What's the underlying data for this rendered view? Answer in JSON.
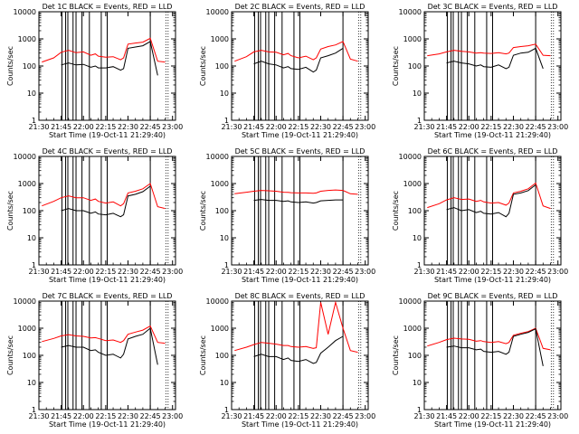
{
  "chart_data": {
    "type": "line",
    "layout": "3x3 grid of log-scale line charts",
    "x_ticks": [
      "21:30",
      "21:45",
      "22:00",
      "22:15",
      "22:30",
      "22:45",
      "23:00"
    ],
    "xlabel": "Start Time (19-Oct-11 21:29:40)",
    "ylabel": "Counts/sec",
    "y_scale": "log",
    "ylim": [
      1,
      10000
    ],
    "y_ticks": [
      "1",
      "10",
      "100",
      "1000",
      "10000"
    ],
    "xlim_minutes": [
      0,
      92
    ],
    "series_names": [
      "Events",
      "LLD"
    ],
    "series_colors": {
      "Events": "#000000",
      "LLD": "#ff0000"
    },
    "vertical_markers_minutes": [
      15.5,
      18,
      19.5,
      23,
      25,
      29,
      34,
      42,
      46,
      75
    ],
    "dotted_markers_minutes": [
      85.5,
      87
    ],
    "panels": [
      {
        "title": "Det 1C BLACK = Events, RED = LLD",
        "x_minutes": [
          2,
          10,
          15,
          20,
          25,
          30,
          35,
          38,
          40,
          45,
          50,
          55,
          57,
          60,
          65,
          70,
          75,
          80,
          85
        ],
        "series": [
          {
            "name": "Events",
            "values": [
              null,
              null,
              110,
              130,
              110,
              115,
              90,
              100,
              85,
              85,
              95,
              70,
              80,
              450,
              500,
              560,
              800,
              45,
              null
            ]
          },
          {
            "name": "LLD",
            "values": [
              140,
              200,
              320,
              380,
              310,
              330,
              250,
              280,
              230,
              210,
              220,
              170,
              200,
              640,
              700,
              760,
              1050,
              150,
              140
            ]
          }
        ]
      },
      {
        "title": "Det 2C BLACK = Events, RED = LLD",
        "x_minutes": [
          2,
          10,
          15,
          20,
          25,
          30,
          35,
          38,
          40,
          45,
          50,
          55,
          57,
          60,
          65,
          70,
          75,
          80,
          85
        ],
        "series": [
          {
            "name": "Events",
            "values": [
              null,
              null,
              120,
              150,
              120,
              110,
              85,
              95,
              80,
              75,
              90,
              60,
              70,
              200,
              240,
              300,
              450,
              null,
              null
            ]
          },
          {
            "name": "LLD",
            "values": [
              150,
              220,
              330,
              380,
              330,
              320,
              260,
              290,
              240,
              200,
              230,
              170,
              200,
              420,
              520,
              600,
              800,
              180,
              150
            ]
          }
        ]
      },
      {
        "title": "Det 3C BLACK = Events, RED = LLD",
        "x_minutes": [
          2,
          10,
          15,
          20,
          25,
          30,
          35,
          38,
          40,
          45,
          50,
          55,
          57,
          60,
          65,
          70,
          75,
          80,
          85
        ],
        "series": [
          {
            "name": "Events",
            "values": [
              null,
              null,
              130,
              150,
              130,
              120,
              100,
              110,
              95,
              90,
              110,
              80,
              90,
              250,
              300,
              320,
              450,
              80,
              null
            ]
          },
          {
            "name": "LLD",
            "values": [
              240,
              280,
              330,
              380,
              350,
              330,
              300,
              310,
              300,
              290,
              310,
              280,
              300,
              480,
              520,
              560,
              640,
              250,
              240
            ]
          }
        ]
      },
      {
        "title": "Det 4C BLACK = Events, RED = LLD",
        "x_minutes": [
          2,
          10,
          15,
          20,
          25,
          30,
          35,
          38,
          40,
          45,
          50,
          55,
          57,
          60,
          65,
          70,
          75,
          80,
          85
        ],
        "series": [
          {
            "name": "Events",
            "values": [
              null,
              null,
              100,
              120,
              100,
              100,
              80,
              90,
              75,
              70,
              80,
              60,
              70,
              350,
              400,
              500,
              800,
              null,
              null
            ]
          },
          {
            "name": "LLD",
            "values": [
              150,
              220,
              300,
              350,
              300,
              300,
              240,
              270,
              220,
              190,
              210,
              150,
              180,
              450,
              520,
              640,
              1000,
              140,
              120
            ]
          }
        ]
      },
      {
        "title": "Det 5C BLACK = Events, RED = LLD",
        "x_minutes": [
          2,
          10,
          15,
          20,
          25,
          30,
          35,
          38,
          40,
          45,
          50,
          55,
          57,
          60,
          65,
          70,
          75,
          80,
          85
        ],
        "series": [
          {
            "name": "Events",
            "values": [
              null,
              null,
              240,
              260,
              240,
              240,
              220,
              230,
              210,
              200,
              210,
              190,
              200,
              230,
              240,
              250,
              250,
              null,
              null
            ]
          },
          {
            "name": "LLD",
            "values": [
              420,
              480,
              520,
              560,
              540,
              520,
              480,
              470,
              460,
              450,
              450,
              440,
              450,
              520,
              560,
              580,
              560,
              420,
              400
            ]
          }
        ]
      },
      {
        "title": "Det 6C BLACK = Events, RED = LLD",
        "x_minutes": [
          2,
          10,
          15,
          20,
          25,
          30,
          35,
          38,
          40,
          45,
          50,
          55,
          57,
          60,
          65,
          70,
          75,
          80,
          85
        ],
        "series": [
          {
            "name": "Events",
            "values": [
              null,
              null,
              110,
              130,
              100,
              110,
              85,
              95,
              80,
              75,
              85,
              60,
              80,
              400,
              450,
              550,
              900,
              null,
              null
            ]
          },
          {
            "name": "LLD",
            "values": [
              130,
              180,
              250,
              300,
              260,
              270,
              220,
              240,
              210,
              190,
              200,
              160,
              190,
              450,
              520,
              640,
              1050,
              150,
              120
            ]
          }
        ]
      },
      {
        "title": "Det 7C BLACK = Events, RED = LLD",
        "x_minutes": [
          2,
          10,
          15,
          20,
          25,
          30,
          35,
          38,
          40,
          45,
          50,
          55,
          57,
          60,
          65,
          70,
          75,
          80,
          85
        ],
        "series": [
          {
            "name": "Events",
            "values": [
              null,
              null,
              200,
              230,
              200,
              200,
              150,
              160,
              130,
              100,
              110,
              80,
              110,
              400,
              500,
              600,
              1000,
              45,
              null
            ]
          },
          {
            "name": "LLD",
            "values": [
              320,
              420,
              520,
              580,
              520,
              500,
              440,
              450,
              420,
              350,
              370,
              300,
              350,
              600,
              720,
              850,
              1200,
              300,
              280
            ]
          }
        ]
      },
      {
        "title": "Det 8C BLACK = Events, RED = LLD",
        "x_minutes": [
          2,
          10,
          15,
          20,
          25,
          30,
          35,
          38,
          40,
          45,
          50,
          55,
          57,
          60,
          65,
          70,
          75,
          80,
          85
        ],
        "series": [
          {
            "name": "Events",
            "values": [
              null,
              null,
              90,
              110,
              90,
              90,
              70,
              80,
              65,
              60,
              70,
              50,
              55,
              120,
              200,
              350,
              500,
              null,
              null
            ]
          },
          {
            "name": "LLD",
            "values": [
              150,
              200,
              250,
              300,
              280,
              260,
              230,
              230,
              210,
              200,
              210,
              180,
              190,
              9000,
              600,
              9000,
              1000,
              150,
              130
            ]
          }
        ]
      },
      {
        "title": "Det 9C BLACK = Events, RED = LLD",
        "x_minutes": [
          2,
          10,
          15,
          20,
          25,
          30,
          35,
          38,
          40,
          45,
          50,
          55,
          57,
          60,
          65,
          70,
          75,
          80,
          85
        ],
        "series": [
          {
            "name": "Events",
            "values": [
              null,
              null,
              200,
              220,
              190,
              190,
              160,
              170,
              140,
              130,
              140,
              110,
              130,
              500,
              600,
              700,
              950,
              40,
              null
            ]
          },
          {
            "name": "LLD",
            "values": [
              220,
              300,
              380,
              430,
              400,
              390,
              330,
              350,
              320,
              300,
              320,
              270,
              300,
              550,
              650,
              750,
              1000,
              180,
              160
            ]
          }
        ]
      }
    ]
  }
}
